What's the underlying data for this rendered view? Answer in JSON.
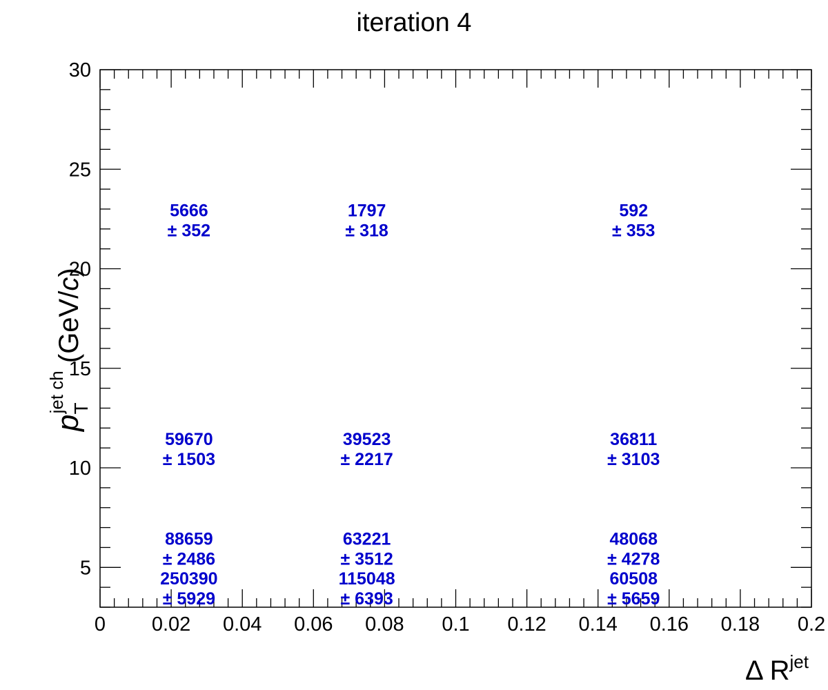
{
  "chart_data": {
    "type": "table",
    "title": "iteration 4",
    "xlabel": {
      "symbol": "Δ R",
      "superscript": "jet"
    },
    "ylabel": {
      "symbol": "p",
      "subscript": "T",
      "superscript": "jet ch",
      "unit_prefix": "(GeV/",
      "unit_c": "c",
      "unit_suffix": ")"
    },
    "xlim": [
      0,
      0.2
    ],
    "ylim": [
      3,
      30
    ],
    "x_ticks": [
      "0",
      "0.02",
      "0.04",
      "0.06",
      "0.08",
      "0.1",
      "0.12",
      "0.14",
      "0.16",
      "0.18",
      "0.2"
    ],
    "x_tick_values": [
      0,
      0.02,
      0.04,
      0.06,
      0.08,
      0.1,
      0.12,
      0.14,
      0.16,
      0.18,
      0.2
    ],
    "y_ticks": [
      "5",
      "10",
      "15",
      "20",
      "25",
      "30"
    ],
    "y_tick_values": [
      5,
      10,
      15,
      20,
      25,
      30
    ],
    "grid": false,
    "text_color": "#0000cc",
    "cells": [
      {
        "x": 0.025,
        "y": 4,
        "value": "250390",
        "error": "± 5929"
      },
      {
        "x": 0.025,
        "y": 6,
        "value": "88659",
        "error": "± 2486"
      },
      {
        "x": 0.025,
        "y": 11,
        "value": "59670",
        "error": "± 1503"
      },
      {
        "x": 0.025,
        "y": 22.5,
        "value": "5666",
        "error": "± 352"
      },
      {
        "x": 0.075,
        "y": 4,
        "value": "115048",
        "error": "± 6393"
      },
      {
        "x": 0.075,
        "y": 6,
        "value": "63221",
        "error": "± 3512"
      },
      {
        "x": 0.075,
        "y": 11,
        "value": "39523",
        "error": "± 2217"
      },
      {
        "x": 0.075,
        "y": 22.5,
        "value": "1797",
        "error": "± 318"
      },
      {
        "x": 0.15,
        "y": 4,
        "value": "60508",
        "error": "± 5659"
      },
      {
        "x": 0.15,
        "y": 6,
        "value": "48068",
        "error": "± 4278"
      },
      {
        "x": 0.15,
        "y": 11,
        "value": "36811",
        "error": "± 3103"
      },
      {
        "x": 0.15,
        "y": 22.5,
        "value": "592",
        "error": "± 353"
      }
    ]
  }
}
